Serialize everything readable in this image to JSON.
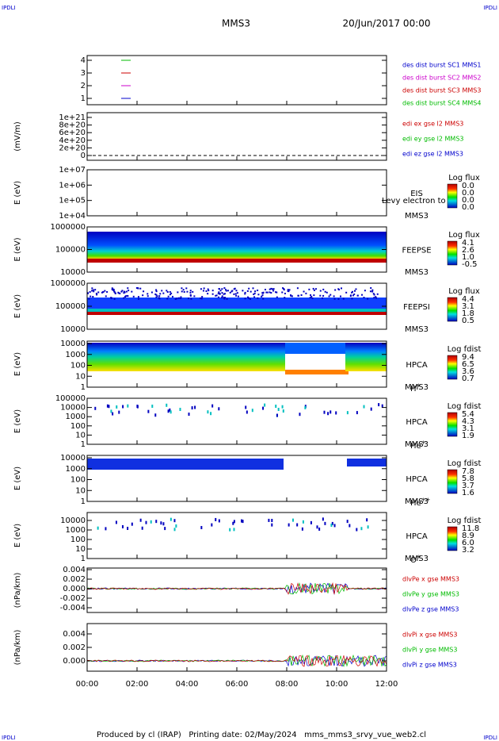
{
  "header": {
    "corner_labels": [
      "IPDLI",
      "IPDLI",
      "IPDLI",
      "IPDLI"
    ],
    "spacecraft": "MMS3",
    "date": "20/Jun/2017 00:00"
  },
  "panels": [
    {
      "ylabel": "",
      "yticks": [
        "4",
        "3",
        "2",
        "1"
      ],
      "legend": [
        {
          "text": "des dist burst SC1 MMS1",
          "color": "#0000cc"
        },
        {
          "text": "des dist burst SC2 MMS2",
          "color": "#cc00cc"
        },
        {
          "text": "des dist burst SC3 MMS3",
          "color": "#cc0000"
        },
        {
          "text": "des dist burst SC4 MMS4",
          "color": "#00bb00"
        }
      ]
    },
    {
      "ylabel": "(mV/m)",
      "yticks": [
        "1e+21",
        "8e+20",
        "6e+20",
        "4e+20",
        "2e+20",
        "0"
      ],
      "legend": [
        {
          "text": "edi ex gse l2 MMS3",
          "color": "#cc0000"
        },
        {
          "text": "edi ey gse l2 MMS3",
          "color": "#00bb00"
        },
        {
          "text": "edi ez gse l2 MMS3",
          "color": "#0000cc"
        }
      ]
    },
    {
      "ylabel": "E (eV)",
      "yticks": [
        "1e+07",
        "1e+06",
        "1e+05",
        "1e+04"
      ],
      "instrument": "EIS",
      "spacecraft": "MMS3",
      "overlay": "Levy electron to",
      "cbar_title": "Log flux",
      "cbar_ticks": [
        "0.0",
        "0.0",
        "0.0",
        "0.0"
      ]
    },
    {
      "ylabel": "E (eV)",
      "yticks": [
        "1000000",
        "100000",
        "10000"
      ],
      "instrument": "FEEPSE",
      "spacecraft": "MMS3",
      "cbar_title": "Log flux",
      "cbar_ticks": [
        "4.1",
        "2.6",
        "1.0",
        "-0.5"
      ]
    },
    {
      "ylabel": "E (eV)",
      "yticks": [
        "1000000",
        "100000",
        "10000"
      ],
      "instrument": "FEEPSI",
      "spacecraft": "MMS3",
      "cbar_title": "Log flux",
      "cbar_ticks": [
        "4.4",
        "3.1",
        "1.8",
        "0.5"
      ]
    },
    {
      "ylabel": "E (eV)",
      "yticks": [
        "10000",
        "1000",
        "100",
        "10",
        "1"
      ],
      "instrument": "HPCA",
      "spacecraft": "MMS3",
      "species": "H",
      "charge": "+",
      "cbar_title": "Log fdist",
      "cbar_ticks": [
        "9.4",
        "6.5",
        "3.6",
        "0.7"
      ]
    },
    {
      "ylabel": "E (eV)",
      "yticks": [
        "100000",
        "10000",
        "1000",
        "100",
        "10",
        "1"
      ],
      "instrument": "HPCA",
      "spacecraft": "MMS3",
      "species": "He",
      "charge": "+",
      "cbar_title": "Log fdist",
      "cbar_ticks": [
        "5.4",
        "4.3",
        "3.1",
        "1.9"
      ]
    },
    {
      "ylabel": "E (eV)",
      "yticks": [
        "10000",
        "1000",
        "100",
        "10",
        "1"
      ],
      "instrument": "HPCA",
      "spacecraft": "MMS3",
      "species": "He",
      "charge": "++",
      "cbar_title": "Log fdist",
      "cbar_ticks": [
        "7.8",
        "5.8",
        "3.7",
        "1.6"
      ]
    },
    {
      "ylabel": "E (eV)",
      "yticks": [
        "10000",
        "1000",
        "100",
        "10",
        "1"
      ],
      "instrument": "HPCA",
      "spacecraft": "MMS3",
      "species": "O",
      "charge": "+",
      "cbar_title": "Log fdist",
      "cbar_ticks": [
        "11.8",
        "8.9",
        "6.0",
        "3.2"
      ]
    },
    {
      "ylabel": "(nPa/km)",
      "yticks": [
        "0.004",
        "0.002",
        "0.000",
        "-0.002",
        "-0.004"
      ],
      "legend": [
        {
          "text": "dlvPe x gse MMS3",
          "color": "#cc0000"
        },
        {
          "text": "dlvPe y gse MMS3",
          "color": "#00bb00"
        },
        {
          "text": "dlvPe z gse MMS3",
          "color": "#0000cc"
        }
      ]
    },
    {
      "ylabel": "(nPa/km)",
      "yticks": [
        "0.004",
        "0.002",
        "0.000"
      ],
      "legend": [
        {
          "text": "dlvPi x gse MMS3",
          "color": "#cc0000"
        },
        {
          "text": "dlvPi y gse MMS3",
          "color": "#00bb00"
        },
        {
          "text": "dlvPi z gse MMS3",
          "color": "#0000cc"
        }
      ]
    }
  ],
  "xticks": [
    "00:00",
    "02:00",
    "04:00",
    "06:00",
    "08:00",
    "10:00",
    "12:00"
  ],
  "footer": "Produced by cl (IRAP)   Printing date: 02/May/2024   mms_mms3_srvy_vue_web2.cl"
}
